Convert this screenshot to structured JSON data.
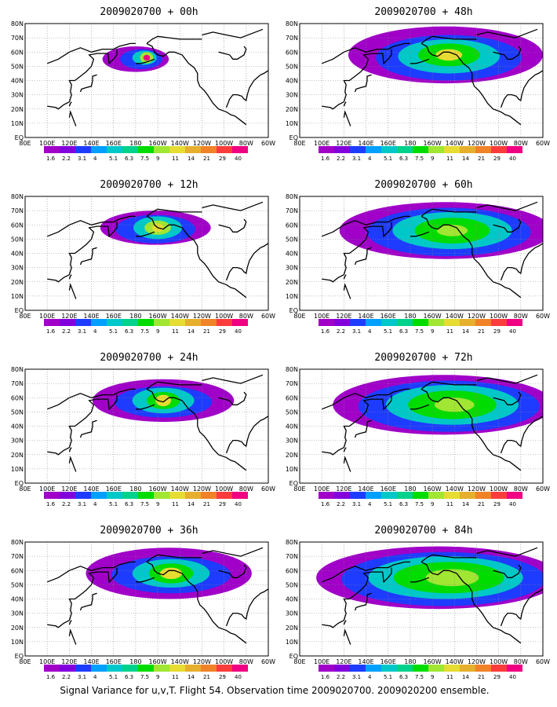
{
  "panels": [
    {
      "title": "2009020700 + 00h",
      "stage": 0
    },
    {
      "title": "2009020700 + 48h",
      "stage": 4
    },
    {
      "title": "2009020700 + 12h",
      "stage": 1
    },
    {
      "title": "2009020700 + 60h",
      "stage": 5
    },
    {
      "title": "2009020700 + 24h",
      "stage": 2
    },
    {
      "title": "2009020700 + 72h",
      "stage": 6
    },
    {
      "title": "2009020700 + 36h",
      "stage": 3
    },
    {
      "title": "2009020700 + 84h",
      "stage": 7
    }
  ],
  "lat_labels": [
    "80N",
    "70N",
    "60N",
    "50N",
    "40N",
    "30N",
    "20N",
    "10N",
    "EQ"
  ],
  "lon_labels": [
    "80E",
    "100E",
    "120E",
    "140E",
    "160E",
    "180",
    "160W",
    "140W",
    "120W",
    "100W",
    "80W",
    "60W"
  ],
  "colorbar": {
    "labels": [
      "1.6",
      "2.2",
      "3.1",
      "4",
      "5.1",
      "6.3",
      "7.5",
      "9",
      "11",
      "14",
      "21",
      "29",
      "40"
    ],
    "colors": [
      "#a000c8",
      "#8200dc",
      "#1e3cff",
      "#00a0ff",
      "#00c8c8",
      "#00d28c",
      "#00dc00",
      "#a0e632",
      "#e6dc32",
      "#e6af2d",
      "#f08228",
      "#fa3c3c",
      "#f00082"
    ]
  },
  "footer": "Signal Variance for u,v,T. Flight 54. Observation time 2009020700. 2009020200 ensemble."
}
